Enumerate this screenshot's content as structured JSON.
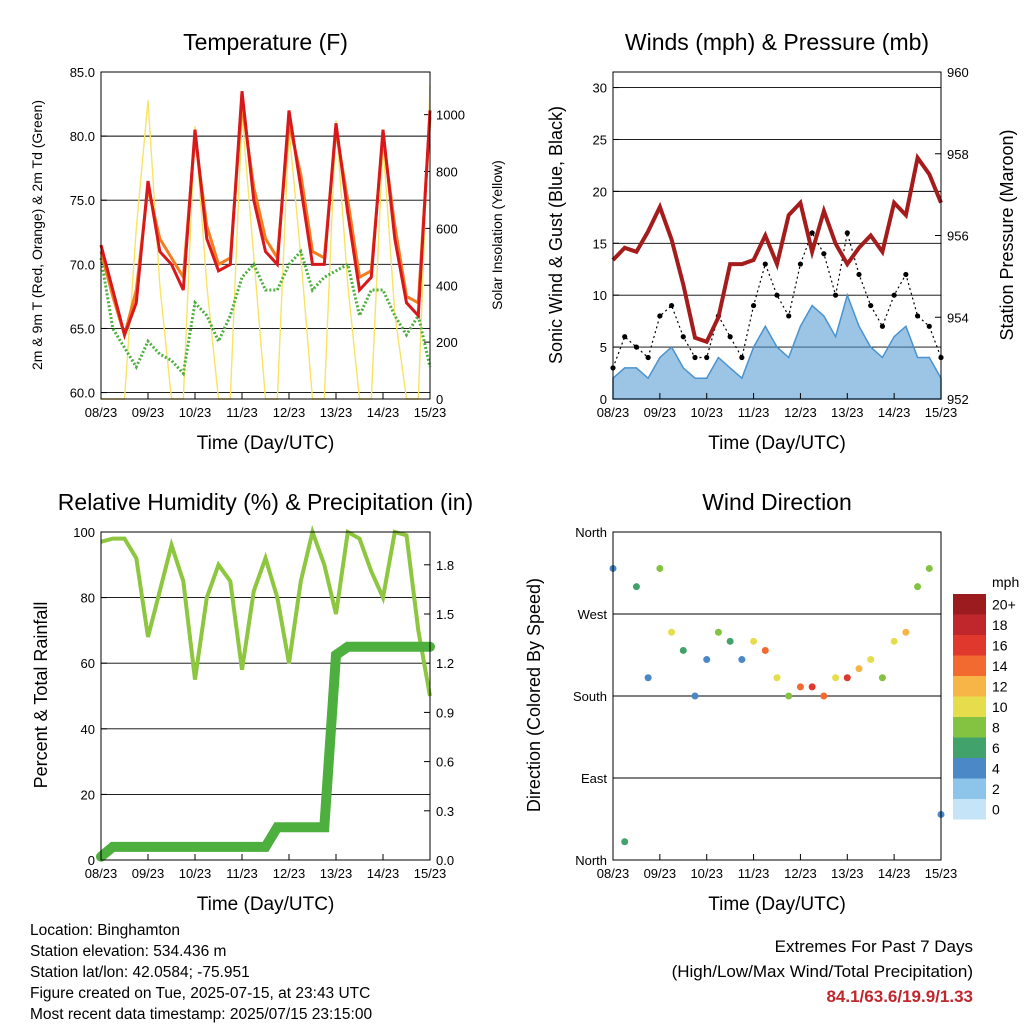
{
  "colors": {
    "temp_red": "#d7191c",
    "temp_orange": "#f47d20",
    "dewpoint_green": "#4daf3e",
    "solar_yellow": "#f7e463",
    "wind_black": "#000000",
    "gust_blue": "#4a93cf",
    "pressure_maroon": "#a51c1c",
    "rh_green": "#8dc63f",
    "precip_green": "#4daf3e",
    "extremes_red": "#c0272d"
  },
  "x_ticks": [
    "08/23",
    "09/23",
    "10/23",
    "11/23",
    "12/23",
    "13/23",
    "14/23",
    "15/23"
  ],
  "chart_data": [
    {
      "type": "line",
      "title": "Temperature (F)",
      "xlabel": "Time (Day/UTC)",
      "ylabel": "2m & 9m T (Red, Orange) & 2m Td (Green)",
      "y2label": "Solar Insolation (Yellow)",
      "ylim": [
        59.5,
        85.0
      ],
      "yticks": [
        "60.0",
        "65.0",
        "70.0",
        "75.0",
        "80.0",
        "85.0"
      ],
      "y2lim": [
        0,
        1150
      ],
      "y2ticks": [
        "0",
        "200",
        "400",
        "600",
        "800",
        "1000"
      ],
      "grid": true,
      "x": [
        0,
        0.25,
        0.5,
        0.75,
        1,
        1.25,
        1.5,
        1.75,
        2,
        2.25,
        2.5,
        2.75,
        3,
        3.25,
        3.5,
        3.75,
        4,
        4.25,
        4.5,
        4.75,
        5,
        5.25,
        5.5,
        5.75,
        6,
        6.25,
        6.5,
        6.75,
        7
      ],
      "series": [
        {
          "values": [
            71.5,
            68,
            64.5,
            67,
            76.5,
            71,
            70,
            68,
            80.5,
            72,
            69.5,
            70,
            83.5,
            75,
            71,
            70,
            82,
            76,
            70,
            70,
            81,
            74,
            68,
            69,
            80.5,
            72,
            67,
            66,
            82
          ]
        },
        {
          "values": [
            71,
            67.5,
            64.5,
            68,
            76,
            72,
            70.5,
            69,
            80,
            73,
            70,
            70.5,
            82.5,
            76,
            72,
            70.5,
            81,
            77,
            71,
            70.5,
            80.5,
            75,
            69,
            69.5,
            80,
            73,
            67.5,
            67,
            81.5
          ]
        },
        {
          "values": [
            70.5,
            65,
            63.5,
            62,
            64,
            63,
            62.5,
            61.5,
            67,
            66,
            64,
            66,
            69,
            70,
            68,
            68,
            70,
            71,
            68,
            69,
            69.5,
            70,
            66,
            68,
            68,
            66,
            64.5,
            66,
            62
          ]
        },
        {
          "values": [
            0,
            0,
            0,
            600,
            1050,
            400,
            0,
            0,
            960,
            400,
            0,
            0,
            1000,
            500,
            0,
            0,
            950,
            500,
            0,
            0,
            980,
            400,
            0,
            0,
            900,
            300,
            0,
            0,
            1100
          ]
        }
      ]
    },
    {
      "type": "scatter",
      "title": "Winds (mph) & Pressure (mb)",
      "xlabel": "Time (Day/UTC)",
      "ylabel": "Sonic Wind & Gust (Blue, Black)",
      "y2label": "Station Pressure (Maroon)",
      "ylim": [
        0,
        31.5
      ],
      "yticks": [
        "0",
        "5",
        "10",
        "15",
        "20",
        "25",
        "30"
      ],
      "y2lim": [
        952,
        960
      ],
      "y2ticks": [
        "952",
        "954",
        "956",
        "958",
        "960"
      ],
      "grid": true,
      "x": [
        0,
        0.25,
        0.5,
        0.75,
        1,
        1.25,
        1.5,
        1.75,
        2,
        2.25,
        2.5,
        2.75,
        3,
        3.25,
        3.5,
        3.75,
        4,
        4.25,
        4.5,
        4.75,
        5,
        5.25,
        5.5,
        5.75,
        6,
        6.25,
        6.5,
        6.75,
        7
      ],
      "series": [
        {
          "values": [
            3,
            6,
            5,
            4,
            8,
            9,
            6,
            4,
            4,
            8,
            6,
            4,
            9,
            13,
            10,
            8,
            13,
            16,
            14,
            10,
            16,
            12,
            9,
            7,
            10,
            12,
            8,
            7,
            4
          ]
        },
        {
          "values": [
            2,
            3,
            3,
            2,
            4,
            5,
            3,
            2,
            2,
            4,
            3,
            2,
            5,
            7,
            5,
            4,
            7,
            9,
            8,
            6,
            10,
            7,
            5,
            4,
            6,
            7,
            4,
            4,
            2
          ]
        },
        {
          "values": [
            955.4,
            955.7,
            955.6,
            956.1,
            956.7,
            955.9,
            954.8,
            953.5,
            953.4,
            954.0,
            955.3,
            955.3,
            955.4,
            956.0,
            955.3,
            956.5,
            956.8,
            955.6,
            956.6,
            955.8,
            955.3,
            955.7,
            956.0,
            955.6,
            956.8,
            956.5,
            957.9,
            957.5,
            956.8
          ]
        }
      ]
    },
    {
      "type": "line",
      "title": "Relative Humidity (%) & Precipitation (in)",
      "xlabel": "Time (Day/UTC)",
      "ylabel": "Percent & Total Rainfall",
      "ylim": [
        0,
        100
      ],
      "yticks": [
        "0",
        "20",
        "40",
        "60",
        "80",
        "100"
      ],
      "y2lim": [
        0,
        2.0
      ],
      "y2ticks": [
        "0.0",
        "0.3",
        "0.6",
        "0.9",
        "1.2",
        "1.5",
        "1.8"
      ],
      "grid": true,
      "x": [
        0,
        0.25,
        0.5,
        0.75,
        1,
        1.25,
        1.5,
        1.75,
        2,
        2.25,
        2.5,
        2.75,
        3,
        3.25,
        3.5,
        3.75,
        4,
        4.25,
        4.5,
        4.75,
        5,
        5.25,
        5.5,
        5.75,
        6,
        6.25,
        6.5,
        6.75,
        7
      ],
      "series": [
        {
          "values": [
            97,
            98,
            98,
            92,
            68,
            82,
            96,
            85,
            55,
            80,
            90,
            85,
            58,
            82,
            92,
            80,
            60,
            85,
            100,
            90,
            75,
            100,
            98,
            88,
            80,
            100,
            99,
            70,
            50
          ]
        },
        {
          "values": [
            0.02,
            0.08,
            0.08,
            0.08,
            0.08,
            0.08,
            0.08,
            0.08,
            0.08,
            0.08,
            0.08,
            0.08,
            0.08,
            0.08,
            0.08,
            0.2,
            0.2,
            0.2,
            0.2,
            0.2,
            1.25,
            1.3,
            1.3,
            1.3,
            1.3,
            1.3,
            1.3,
            1.3,
            1.3
          ]
        }
      ]
    },
    {
      "type": "scatter",
      "title": "Wind Direction",
      "xlabel": "Time (Day/UTC)",
      "ylabel": "Direction (Colored By Speed)",
      "yticks": [
        "North",
        "East",
        "South",
        "West",
        "North"
      ],
      "ylim": [
        0,
        360
      ],
      "legend_title": "mph",
      "legend_labels": [
        "0",
        "2",
        "4",
        "6",
        "8",
        "10",
        "12",
        "14",
        "16",
        "18",
        "20+"
      ],
      "legend_colors": [
        "#c6e4f7",
        "#8cc4ea",
        "#4a88c7",
        "#41a36b",
        "#84c341",
        "#e6dd4c",
        "#f7b547",
        "#f26a30",
        "#e0382c",
        "#c0272d",
        "#9b1b1e"
      ],
      "x": [
        0,
        0.25,
        0.5,
        0.75,
        1,
        1.25,
        1.5,
        1.75,
        2,
        2.25,
        2.5,
        2.75,
        3,
        3.25,
        3.5,
        3.75,
        4,
        4.25,
        4.5,
        4.75,
        5,
        5.25,
        5.5,
        5.75,
        6,
        6.25,
        6.5,
        6.75,
        7
      ],
      "series": [
        {
          "values": [
            320,
            20,
            300,
            200,
            320,
            250,
            230,
            180,
            220,
            250,
            240,
            220,
            240,
            230,
            200,
            180,
            190,
            190,
            180,
            200,
            200,
            210,
            220,
            200,
            240,
            250,
            300,
            320,
            50
          ]
        }
      ]
    }
  ],
  "footer": {
    "location": "Location: Binghamton",
    "elevation": "Station elevation: 534.436 m",
    "latlon": "Station lat/lon: 42.0584; -75.951",
    "created": "Figure created on Tue, 2025-07-15, at 23:43 UTC",
    "recent": "Most recent data timestamp: 2025/07/15 23:15:00",
    "extremes_title": "Extremes For Past 7 Days",
    "extremes_sub": "(High/Low/Max Wind/Total Precipitation)",
    "extremes_values": "84.1/63.6/19.9/1.33"
  }
}
